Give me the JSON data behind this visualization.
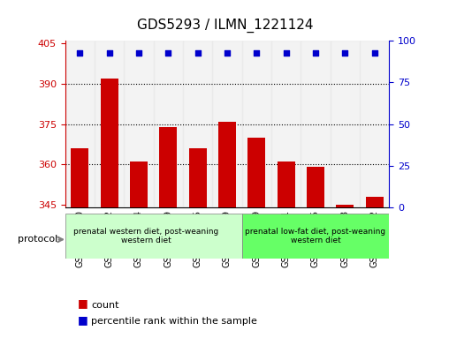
{
  "title": "GDS5293 / ILMN_1221124",
  "samples": [
    "GSM1093600",
    "GSM1093602",
    "GSM1093604",
    "GSM1093609",
    "GSM1093615",
    "GSM1093619",
    "GSM1093599",
    "GSM1093601",
    "GSM1093605",
    "GSM1093608",
    "GSM1093612"
  ],
  "counts": [
    366,
    392,
    361,
    374,
    366,
    376,
    370,
    361,
    359,
    345,
    348
  ],
  "percentiles": [
    93,
    93,
    93,
    93,
    93,
    93,
    93,
    93,
    93,
    93,
    93
  ],
  "ylim_left": [
    344,
    406
  ],
  "ylim_right": [
    0,
    100
  ],
  "yticks_left": [
    345,
    360,
    375,
    390,
    405
  ],
  "yticks_right": [
    0,
    25,
    50,
    75,
    100
  ],
  "bar_color": "#cc0000",
  "dot_color": "#0000cc",
  "grid_color": "#000000",
  "bg_color": "#ffffff",
  "plot_bg": "#ffffff",
  "group1_samples": 6,
  "group2_samples": 5,
  "group1_label": "prenatal western diet, post-weaning\nwestern diet",
  "group2_label": "prenatal low-fat diet, post-weaning\nwestern diet",
  "group1_color": "#ccffcc",
  "group2_color": "#66ff66",
  "protocol_label": "protocol",
  "legend_count_label": "count",
  "legend_percentile_label": "percentile rank within the sample",
  "base": 344
}
